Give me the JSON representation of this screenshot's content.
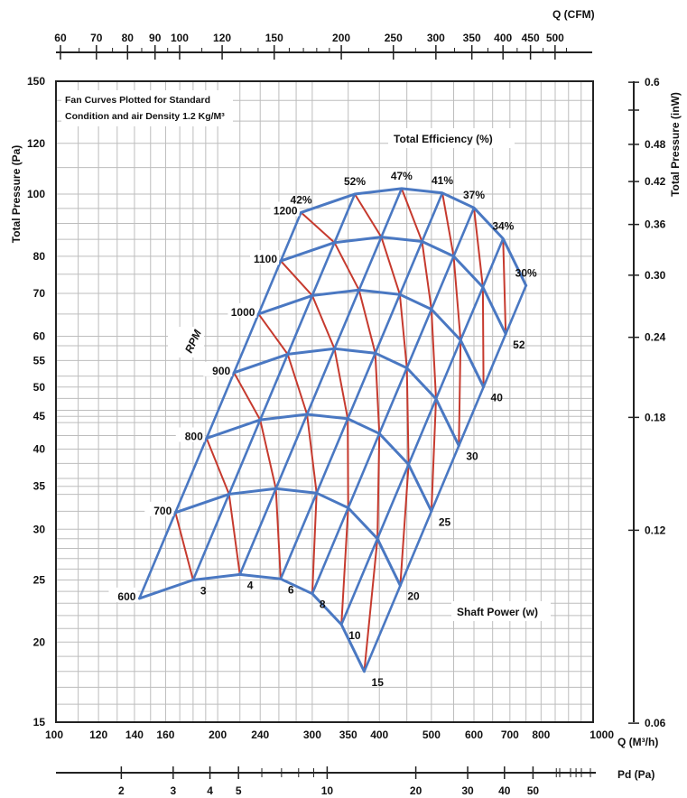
{
  "chart_data": {
    "type": "line",
    "title": "",
    "note": [
      "Fan Curves Plotted for Standard",
      "Condition and air Density 1.2 Kg/M³"
    ],
    "axes": {
      "x_bottom": {
        "label": "Q (M³/h)",
        "scale": "log",
        "range": [
          100,
          1000
        ],
        "ticks": [
          100,
          120,
          140,
          160,
          200,
          240,
          300,
          350,
          400,
          500,
          600,
          700,
          800,
          1000
        ]
      },
      "x_top": {
        "label": "Q (CFM)",
        "scale": "log",
        "ticks": [
          60,
          70,
          80,
          90,
          100,
          120,
          150,
          200,
          250,
          300,
          350,
          400,
          450,
          500
        ]
      },
      "y_left": {
        "label": "Total Pressure (Pa)",
        "scale": "log",
        "range": [
          15,
          150
        ],
        "ticks": [
          15,
          20,
          25,
          30,
          35,
          40,
          45,
          50,
          55,
          60,
          70,
          80,
          100,
          120,
          150
        ]
      },
      "y_right": {
        "label": "Total Pressure (inW)",
        "scale": "log",
        "ticks": [
          "0.06",
          "0.12",
          "0.18",
          "0.24",
          "0.30",
          "0.36",
          "0.42",
          "0.48",
          "0.6"
        ]
      },
      "x_pd": {
        "label": "Pd (Pa)",
        "scale": "log",
        "ticks": [
          2,
          3,
          4,
          5,
          10,
          20,
          30,
          40,
          50
        ]
      }
    },
    "group_labels": {
      "rpm": "RPM",
      "efficiency": "Total Efficiency (%)",
      "power": "Shaft Power (w)"
    },
    "rpm_curves": [
      {
        "name": "600",
        "q_start": 143,
        "scale": 1.0
      },
      {
        "name": "700",
        "q_start": 167,
        "scale": 1.1667
      },
      {
        "name": "800",
        "q_start": 191,
        "scale": 1.3333
      },
      {
        "name": "900",
        "q_start": 215,
        "scale": 1.5
      },
      {
        "name": "1000",
        "q_start": 239,
        "scale": 1.6667
      },
      {
        "name": "1100",
        "q_start": 262,
        "scale": 1.8333
      },
      {
        "name": "1200",
        "q_start": 286,
        "scale": 2.0
      }
    ],
    "base_curve": {
      "description": "600 RPM operating curve, Q in M³/h, P in Pa",
      "q": [
        143,
        180,
        220,
        262,
        300,
        340,
        375
      ],
      "p": [
        23.4,
        25.0,
        25.5,
        25.1,
        23.8,
        21.3,
        18.0
      ]
    },
    "efficiency_labels": [
      "42%",
      "52%",
      "47%",
      "41%",
      "37%",
      "34%",
      "30%"
    ],
    "power_labels": [
      "3",
      "4",
      "6",
      "8",
      "10",
      "15",
      "20",
      "25",
      "30",
      "40",
      "52"
    ],
    "colors": {
      "fan": "#4a78c2",
      "efficiency": "#c63a2e",
      "grid": "#bdbdbd",
      "axis": "#222222"
    }
  }
}
